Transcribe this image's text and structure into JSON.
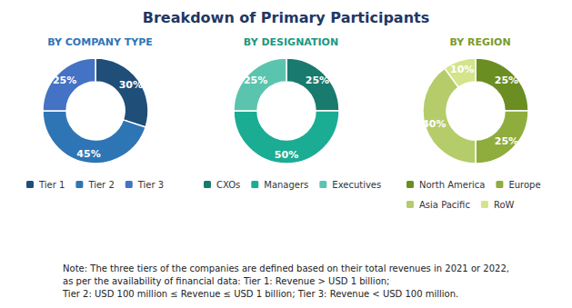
{
  "title": "Breakdown of Primary Participants",
  "annotations": [
    "Note: The three tiers of the companies are defined based on their total revenues in 2021 or 2022,",
    "as per the availability of financial data: Tier 1: Revenue > USD 1 billion;",
    "Tier 2: USD 100 million ≤ Revenue ≤ USD 1 billion; Tier 3: Revenue < USD 100 million."
  ],
  "chart_data": [
    {
      "type": "pie",
      "title": "BY COMPANY TYPE",
      "categories": [
        "Tier 1",
        "Tier 2",
        "Tier 3"
      ],
      "values": [
        30,
        45,
        25
      ],
      "value_labels": [
        "30%",
        "45%",
        "25%"
      ],
      "colors": [
        "#1f4e79",
        "#2e75b6",
        "#4472c4"
      ],
      "data_labels": true,
      "legend": "bottom"
    },
    {
      "type": "pie",
      "title": "BY DESIGNATION",
      "categories": [
        "CXOs",
        "Managers",
        "Executives"
      ],
      "values": [
        25,
        50,
        25
      ],
      "value_labels": [
        "25%",
        "50%",
        "25%"
      ],
      "colors": [
        "#197a6e",
        "#1bac94",
        "#5bc4af"
      ],
      "data_labels": true,
      "legend": "bottom"
    },
    {
      "type": "pie",
      "title": "BY REGION",
      "categories": [
        "North America",
        "Europe",
        "Asia Pacific",
        "RoW"
      ],
      "values": [
        25,
        25,
        40,
        10
      ],
      "value_labels": [
        "25%",
        "25%",
        "40%",
        "10%"
      ],
      "colors": [
        "#6b8e23",
        "#8fad3c",
        "#b5cc6a",
        "#d4e48a"
      ],
      "data_labels": true,
      "legend": "bottom"
    }
  ]
}
